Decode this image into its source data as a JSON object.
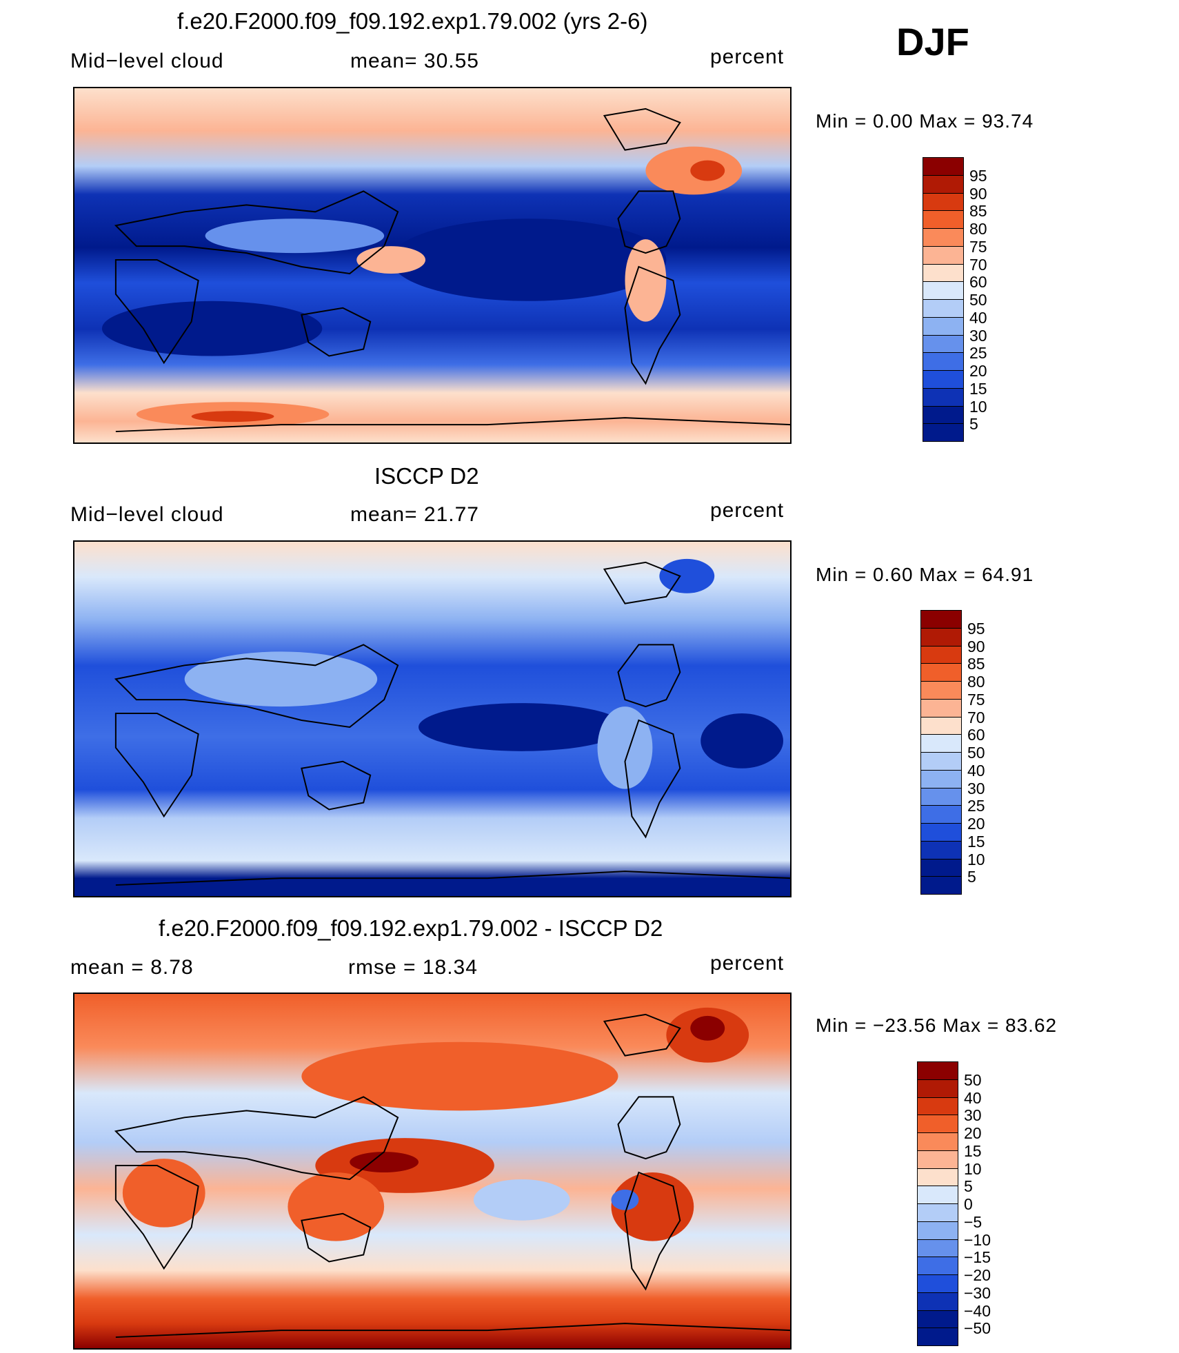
{
  "season": "DJF",
  "units": "percent",
  "panels": [
    {
      "title": "f.e20.F2000.f09_f09.192.exp1.79.002 (yrs 2-6)",
      "left_label": "Mid−level cloud",
      "center_label": "mean=  30.55",
      "right_label": "percent",
      "minmax": "Min =    0.00 Max =   93.74",
      "colorbar_labels": [
        "95",
        "90",
        "85",
        "80",
        "75",
        "70",
        "60",
        "50",
        "40",
        "30",
        "25",
        "20",
        "15",
        "10",
        "5"
      ]
    },
    {
      "title": "ISCCP D2",
      "left_label": "Mid−level cloud",
      "center_label": "mean=  21.77",
      "right_label": "percent",
      "minmax": "Min =    0.60 Max =   64.91",
      "colorbar_labels": [
        "95",
        "90",
        "85",
        "80",
        "75",
        "70",
        "60",
        "50",
        "40",
        "30",
        "25",
        "20",
        "15",
        "10",
        "5"
      ]
    },
    {
      "title": "f.e20.F2000.f09_f09.192.exp1.79.002 - ISCCP D2",
      "left_label": "mean =    8.78",
      "center_label": "rmse =   18.34",
      "right_label": "percent",
      "minmax": "Min = −23.56 Max =   83.62",
      "colorbar_labels": [
        "50",
        "40",
        "30",
        "20",
        "15",
        "10",
        "5",
        "0",
        "−5",
        "−10",
        "−15",
        "−20",
        "−30",
        "−40",
        "−50"
      ]
    }
  ],
  "colors": {
    "scale": [
      "#8b0000",
      "#b01a05",
      "#d83a10",
      "#f05f2a",
      "#fa8a5a",
      "#fcb494",
      "#fde0cc",
      "#d9e8fb",
      "#b3cdf7",
      "#8db2f2",
      "#6691ec",
      "#3e6ee6",
      "#1f4fdb",
      "#0e32b5",
      "#001a8c"
    ],
    "ocean_model": "#0a2aa0",
    "ocean_obs": "#1e48d0",
    "land_outline": "#000000"
  }
}
